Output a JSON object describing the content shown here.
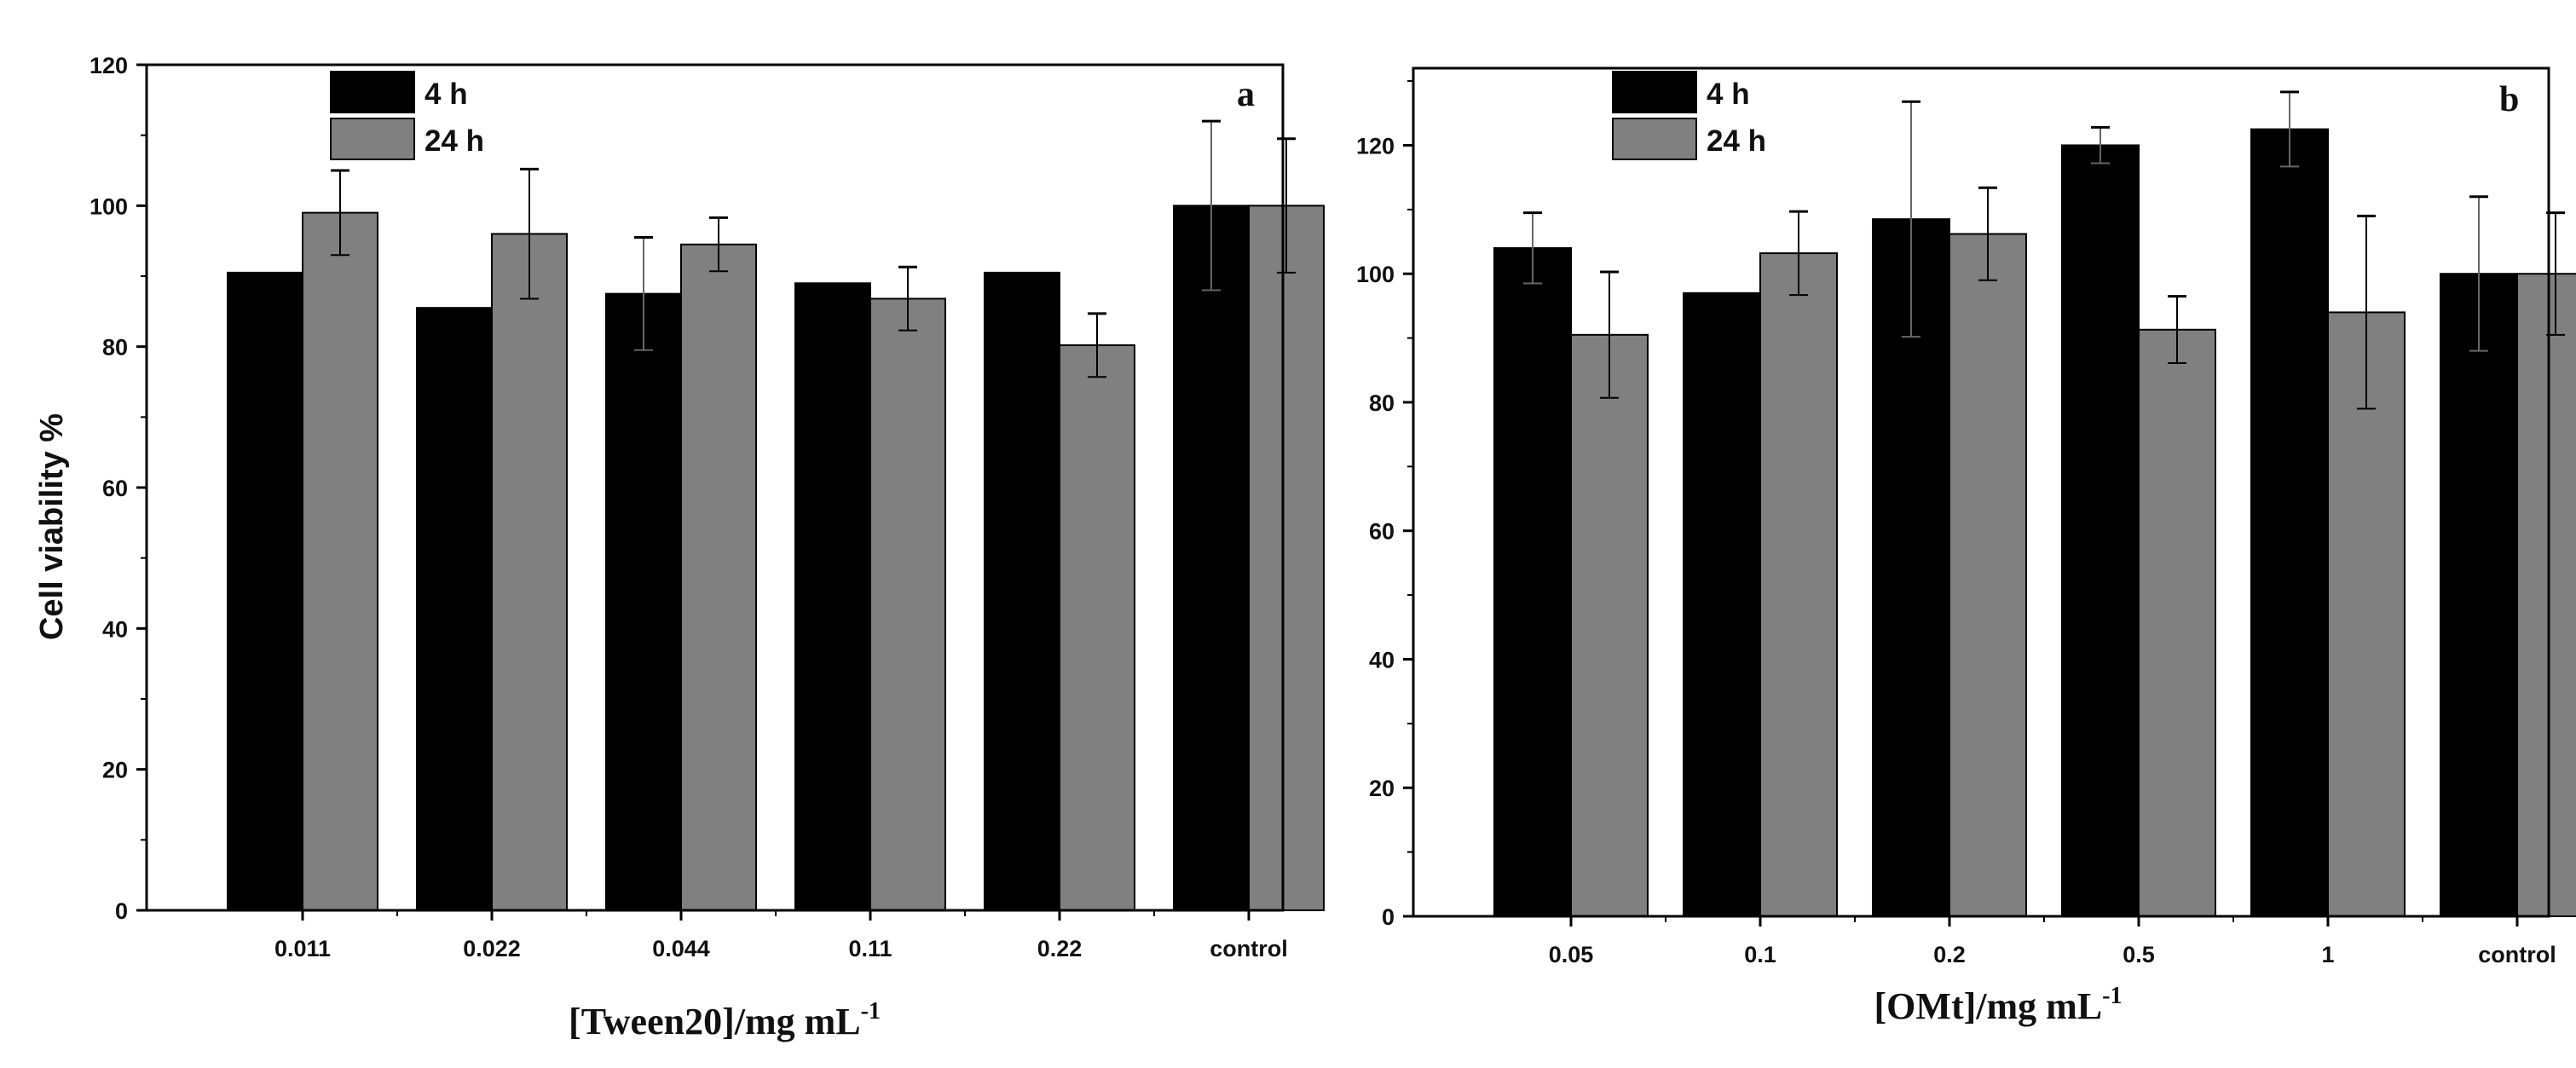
{
  "chart_data": [
    {
      "type": "bar",
      "panel_label": "a",
      "xlabel_main": "[Tween20]/mg mL",
      "xlabel_sup": "-1",
      "ylabel": "Cell viability %",
      "ylim": [
        0,
        120
      ],
      "yticks": [
        "0",
        "20",
        "40",
        "60",
        "80",
        "100",
        "120"
      ],
      "categories": [
        "0.011",
        "0.022",
        "0.044",
        "0.11",
        "0.22",
        "control"
      ],
      "series": [
        {
          "name": "4 h",
          "color": "#000000",
          "values": [
            90.5,
            85.5,
            87.5,
            89,
            90.5,
            100
          ],
          "errors": [
            0,
            0,
            8,
            0,
            0,
            12
          ]
        },
        {
          "name": "24 h",
          "color": "#808080",
          "values": [
            99,
            96,
            94.5,
            86.8,
            80.2,
            100
          ],
          "errors": [
            6,
            9.2,
            3.8,
            4.5,
            4.5,
            9.5
          ]
        }
      ]
    },
    {
      "type": "bar",
      "panel_label": "b",
      "xlabel_main": "[OMt]/mg mL",
      "xlabel_sup": "-1",
      "ylabel": "",
      "ylim": [
        0,
        132
      ],
      "yticks": [
        "0",
        "20",
        "40",
        "60",
        "80",
        "100",
        "120"
      ],
      "categories": [
        "0.05",
        "0.1",
        "0.2",
        "0.5",
        "1",
        "control"
      ],
      "series": [
        {
          "name": "4 h",
          "color": "#000000",
          "values": [
            104,
            97,
            108.5,
            120,
            122.5,
            100
          ],
          "errors": [
            5.5,
            0,
            18.3,
            2.8,
            5.8,
            12
          ]
        },
        {
          "name": "24 h",
          "color": "#808080",
          "values": [
            90.5,
            103.2,
            106.2,
            91.3,
            94,
            100
          ],
          "errors": [
            9.8,
            6.5,
            7.2,
            5.2,
            15,
            9.5
          ]
        }
      ]
    }
  ]
}
